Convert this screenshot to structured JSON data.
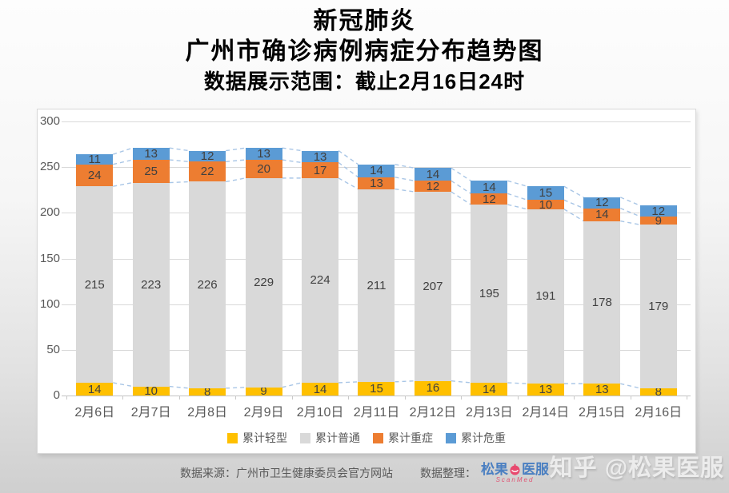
{
  "title": {
    "line1": "新冠肺炎",
    "line2": "广州市确诊病例病症分布趋势图",
    "line3": "数据展示范围：截止2月16日24时"
  },
  "chart_data": {
    "type": "bar",
    "stacked": true,
    "categories": [
      "2月6日",
      "2月7日",
      "2月8日",
      "2月9日",
      "2月10日",
      "2月11日",
      "2月12日",
      "2月13日",
      "2月14日",
      "2月15日",
      "2月16日"
    ],
    "series": [
      {
        "name": "累计轻型",
        "color": "#FFC000",
        "values": [
          14,
          10,
          8,
          9,
          14,
          15,
          16,
          14,
          13,
          13,
          8
        ]
      },
      {
        "name": "累计普通",
        "color": "#D9D9D9",
        "values": [
          215,
          223,
          226,
          229,
          224,
          211,
          207,
          195,
          191,
          178,
          179
        ]
      },
      {
        "name": "累计重症",
        "color": "#ED7D31",
        "values": [
          24,
          25,
          22,
          20,
          17,
          13,
          12,
          12,
          10,
          14,
          9
        ]
      },
      {
        "name": "累计危重",
        "color": "#5B9BD5",
        "values": [
          11,
          13,
          12,
          13,
          13,
          14,
          14,
          14,
          15,
          12,
          12
        ]
      }
    ],
    "ylim": [
      0,
      300
    ],
    "yticks": [
      0,
      50,
      100,
      150,
      200,
      250,
      300
    ],
    "grid": true,
    "legend_position": "bottom",
    "connector_lines": true,
    "connector_color": "#A9C6E6",
    "data_label_color": "#404040"
  },
  "footer": {
    "source_label": "数据来源：广州市卫生健康委员会官方网站",
    "editor_label": "数据整理：",
    "logo": {
      "part1": "松果",
      "part2": "医服",
      "subtext": "ScanMed"
    }
  },
  "watermark": "知乎 @松果医服"
}
